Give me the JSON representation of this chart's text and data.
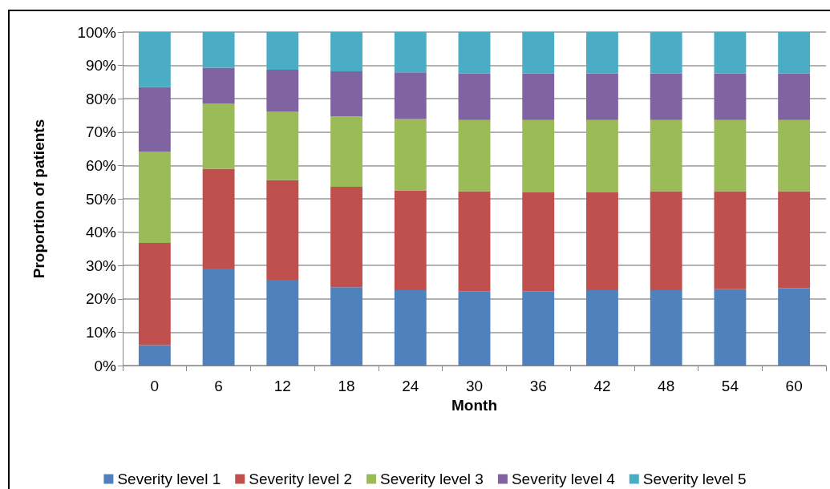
{
  "chart_data": {
    "type": "bar",
    "stacked": true,
    "xlabel": "Month",
    "ylabel": "Proportion of patients",
    "categories": [
      "0",
      "6",
      "12",
      "18",
      "24",
      "30",
      "36",
      "42",
      "48",
      "54",
      "60"
    ],
    "series": [
      {
        "name": "Severity level 1",
        "color": "#4f81bd",
        "values": [
          6.1,
          29.1,
          25.7,
          23.5,
          22.6,
          22.3,
          22.3,
          22.6,
          22.6,
          22.9,
          23.2
        ]
      },
      {
        "name": "Severity level 2",
        "color": "#c0504d",
        "values": [
          30.7,
          29.9,
          29.9,
          30.1,
          29.9,
          30.0,
          29.6,
          29.3,
          29.7,
          29.4,
          29.1
        ]
      },
      {
        "name": "Severity level 3",
        "color": "#9bbb59",
        "values": [
          27.4,
          19.5,
          20.5,
          21.1,
          21.4,
          21.3,
          21.7,
          21.7,
          21.3,
          21.3,
          21.3
        ]
      },
      {
        "name": "Severity level 4",
        "color": "#8064a2",
        "values": [
          19.3,
          10.8,
          12.6,
          13.5,
          14.0,
          14.0,
          14.0,
          14.0,
          14.0,
          14.0,
          14.0
        ]
      },
      {
        "name": "Severity level 5",
        "color": "#4bacc6",
        "values": [
          16.5,
          10.7,
          11.3,
          11.8,
          12.1,
          12.4,
          12.4,
          12.4,
          12.4,
          12.4,
          12.4
        ]
      }
    ],
    "ylim": [
      0,
      100
    ],
    "yticks": [
      {
        "value": 0,
        "label": "0%"
      },
      {
        "value": 10,
        "label": "10%"
      },
      {
        "value": 20,
        "label": "20%"
      },
      {
        "value": 30,
        "label": "30%"
      },
      {
        "value": 40,
        "label": "40%"
      },
      {
        "value": 50,
        "label": "50%"
      },
      {
        "value": 60,
        "label": "60%"
      },
      {
        "value": 70,
        "label": "70%"
      },
      {
        "value": 80,
        "label": "80%"
      },
      {
        "value": 90,
        "label": "90%"
      },
      {
        "value": 100,
        "label": "100%"
      }
    ],
    "grid": "y",
    "legend": "bottom"
  }
}
